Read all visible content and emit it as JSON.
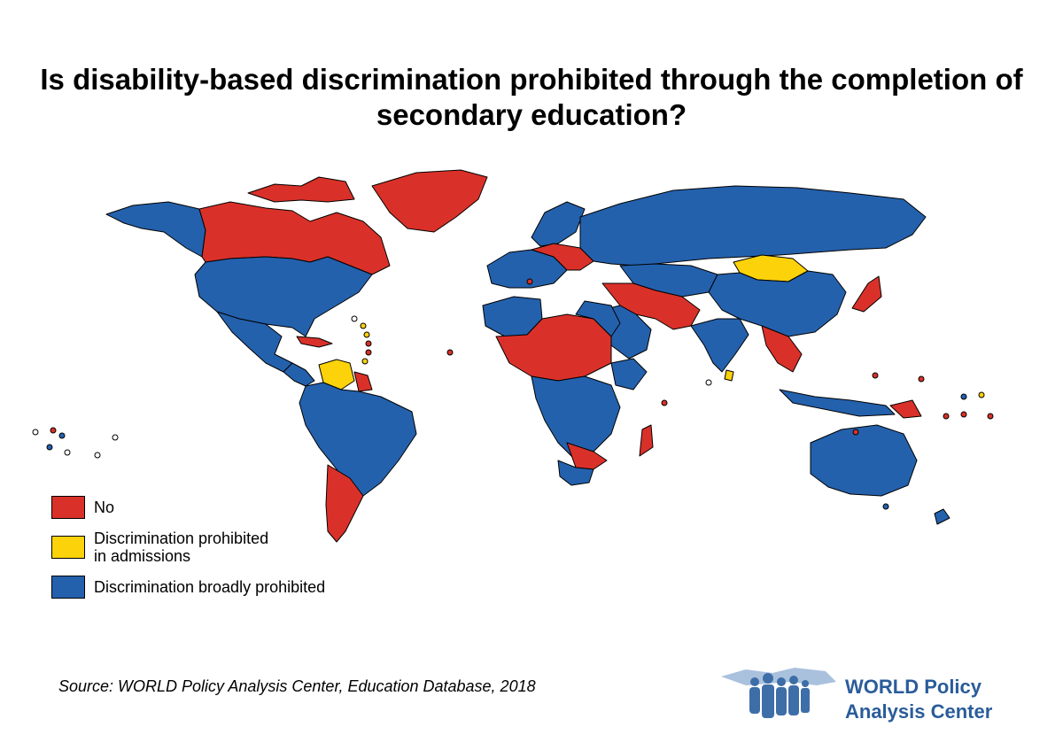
{
  "title": "Is disability-based discrimination prohibited through the completion of secondary education?",
  "legend": [
    {
      "label": "No",
      "color": "#d93129"
    },
    {
      "label": "Discrimination prohibited\nin admissions",
      "color": "#fcd20a"
    },
    {
      "label": "Discrimination broadly prohibited",
      "color": "#2461ad"
    }
  ],
  "source": "Source: WORLD Policy Analysis Center, Education Database, 2018",
  "logo": {
    "line1": "WORLD Policy",
    "line2": "Analysis Center",
    "color": "#2a5c9a"
  },
  "colors": {
    "no": "#d93129",
    "admissions": "#fcd20a",
    "broad": "#2461ad",
    "nodata": "#ffffff",
    "border": "#000000"
  }
}
